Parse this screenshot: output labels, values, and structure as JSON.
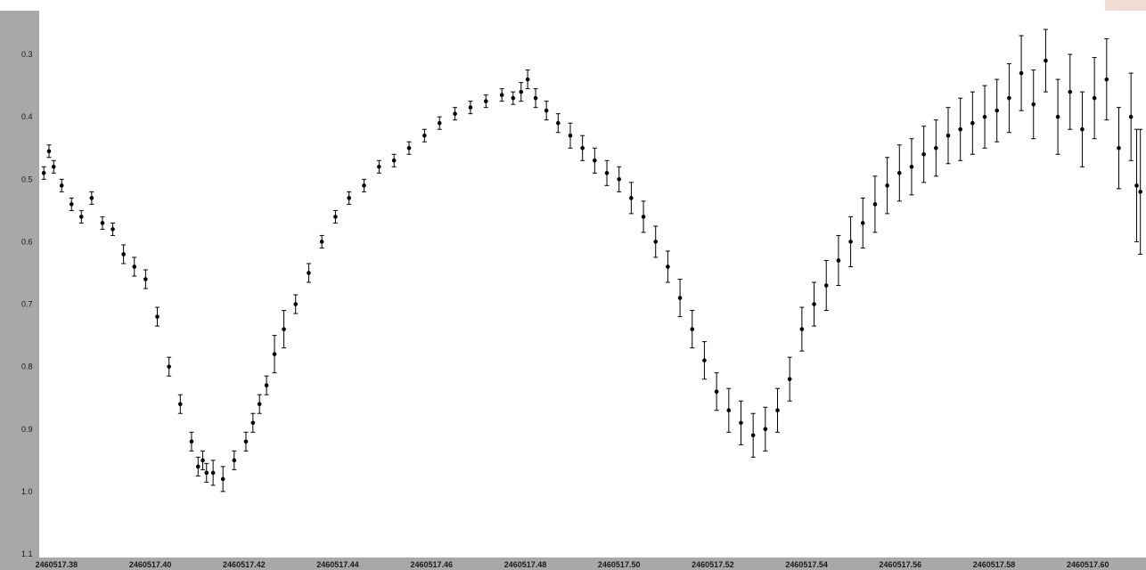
{
  "colors": {
    "background": "#ffffff",
    "axis_band": "#a8a8a8",
    "marker": "#000000",
    "tick_text": "#1a1a1a",
    "corner_swatch": "#f0dcd2"
  },
  "chart_data": {
    "type": "scatter",
    "title": "",
    "xlabel": "",
    "ylabel": "",
    "y_inverted": true,
    "grid": false,
    "legend": "none",
    "xlim": [
      2460517.3765,
      2460517.6124
    ],
    "ylim": [
      0.23,
      1.1
    ],
    "x_ticks": [
      2460517.38,
      2460517.4,
      2460517.42,
      2460517.44,
      2460517.46,
      2460517.48,
      2460517.5,
      2460517.52,
      2460517.54,
      2460517.56,
      2460517.58,
      2460517.6
    ],
    "x_tick_labels": [
      "2460517.38",
      "2460517.40",
      "2460517.42",
      "2460517.44",
      "2460517.46",
      "2460517.48",
      "2460517.50",
      "2460517.52",
      "2460517.54",
      "2460517.56",
      "2460517.58",
      "2460517.60"
    ],
    "y_ticks": [
      0.3,
      0.4,
      0.5,
      0.6,
      0.7,
      0.8,
      0.9,
      1.0,
      1.1
    ],
    "y_tick_labels": [
      "0.3",
      "0.4",
      "0.5",
      "0.6",
      "0.7",
      "0.8",
      "0.9",
      "1.0",
      "1.1"
    ],
    "series": [
      {
        "x": [
          2460517.3773,
          2460517.3784,
          2460517.3794,
          2460517.3811,
          2460517.3832,
          2460517.3853,
          2460517.3875,
          2460517.3898,
          2460517.392,
          2460517.3943,
          2460517.3966,
          2460517.399,
          2460517.4015,
          2460517.404,
          2460517.4064,
          2460517.4088,
          2460517.4102,
          2460517.4112,
          2460517.412,
          2460517.4134,
          2460517.4155,
          2460517.4179,
          2460517.4204,
          2460517.4219,
          2460517.4233,
          2460517.4248,
          2460517.4265,
          2460517.4285,
          2460517.431,
          2460517.4338,
          2460517.4366,
          2460517.4395,
          2460517.4424,
          2460517.4456,
          2460517.4488,
          2460517.452,
          2460517.4552,
          2460517.4585,
          2460517.4617,
          2460517.465,
          2460517.4683,
          2460517.4716,
          2460517.475,
          2460517.4774,
          2460517.4791,
          2460517.4805,
          2460517.4822,
          2460517.4845,
          2460517.487,
          2460517.4896,
          2460517.4922,
          2460517.4948,
          2460517.4974,
          2460517.5,
          2460517.5026,
          2460517.5052,
          2460517.5078,
          2460517.5104,
          2460517.513,
          2460517.5156,
          2460517.5182,
          2460517.5208,
          2460517.5234,
          2460517.526,
          2460517.5286,
          2460517.5312,
          2460517.5338,
          2460517.5364,
          2460517.539,
          2460517.5416,
          2460517.5442,
          2460517.5468,
          2460517.5494,
          2460517.552,
          2460517.5546,
          2460517.5572,
          2460517.5598,
          2460517.5624,
          2460517.565,
          2460517.5676,
          2460517.5702,
          2460517.5728,
          2460517.5754,
          2460517.578,
          2460517.5806,
          2460517.5832,
          2460517.5858,
          2460517.5884,
          2460517.591,
          2460517.5936,
          2460517.5962,
          2460517.5988,
          2460517.6014,
          2460517.604,
          2460517.6066,
          2460517.6092,
          2460517.6104,
          2460517.6112
        ],
        "y": [
          0.49,
          0.455,
          0.48,
          0.51,
          0.54,
          0.56,
          0.53,
          0.57,
          0.58,
          0.62,
          0.64,
          0.66,
          0.72,
          0.8,
          0.86,
          0.92,
          0.96,
          0.95,
          0.97,
          0.97,
          0.98,
          0.95,
          0.92,
          0.89,
          0.86,
          0.83,
          0.78,
          0.74,
          0.7,
          0.65,
          0.6,
          0.56,
          0.53,
          0.51,
          0.48,
          0.47,
          0.45,
          0.43,
          0.41,
          0.395,
          0.385,
          0.375,
          0.365,
          0.37,
          0.36,
          0.34,
          0.37,
          0.39,
          0.41,
          0.43,
          0.45,
          0.47,
          0.49,
          0.5,
          0.53,
          0.56,
          0.6,
          0.64,
          0.69,
          0.74,
          0.79,
          0.84,
          0.87,
          0.89,
          0.91,
          0.9,
          0.87,
          0.82,
          0.74,
          0.7,
          0.67,
          0.63,
          0.6,
          0.57,
          0.54,
          0.51,
          0.49,
          0.48,
          0.46,
          0.45,
          0.43,
          0.42,
          0.41,
          0.4,
          0.39,
          0.37,
          0.33,
          0.38,
          0.31,
          0.4,
          0.36,
          0.42,
          0.37,
          0.34,
          0.45,
          0.4,
          0.51,
          0.52
        ],
        "err": [
          0.01,
          0.01,
          0.01,
          0.01,
          0.01,
          0.01,
          0.01,
          0.01,
          0.01,
          0.015,
          0.015,
          0.015,
          0.015,
          0.015,
          0.015,
          0.015,
          0.015,
          0.015,
          0.015,
          0.02,
          0.02,
          0.015,
          0.015,
          0.015,
          0.015,
          0.015,
          0.03,
          0.03,
          0.015,
          0.015,
          0.01,
          0.01,
          0.01,
          0.01,
          0.01,
          0.01,
          0.01,
          0.01,
          0.01,
          0.01,
          0.01,
          0.01,
          0.01,
          0.01,
          0.015,
          0.015,
          0.015,
          0.015,
          0.015,
          0.02,
          0.02,
          0.02,
          0.02,
          0.02,
          0.025,
          0.025,
          0.025,
          0.025,
          0.03,
          0.03,
          0.03,
          0.03,
          0.035,
          0.035,
          0.035,
          0.035,
          0.035,
          0.035,
          0.035,
          0.035,
          0.04,
          0.04,
          0.04,
          0.04,
          0.045,
          0.045,
          0.045,
          0.045,
          0.045,
          0.045,
          0.045,
          0.05,
          0.05,
          0.05,
          0.05,
          0.055,
          0.06,
          0.055,
          0.05,
          0.06,
          0.06,
          0.06,
          0.065,
          0.065,
          0.065,
          0.07,
          0.09,
          0.1
        ]
      }
    ]
  }
}
